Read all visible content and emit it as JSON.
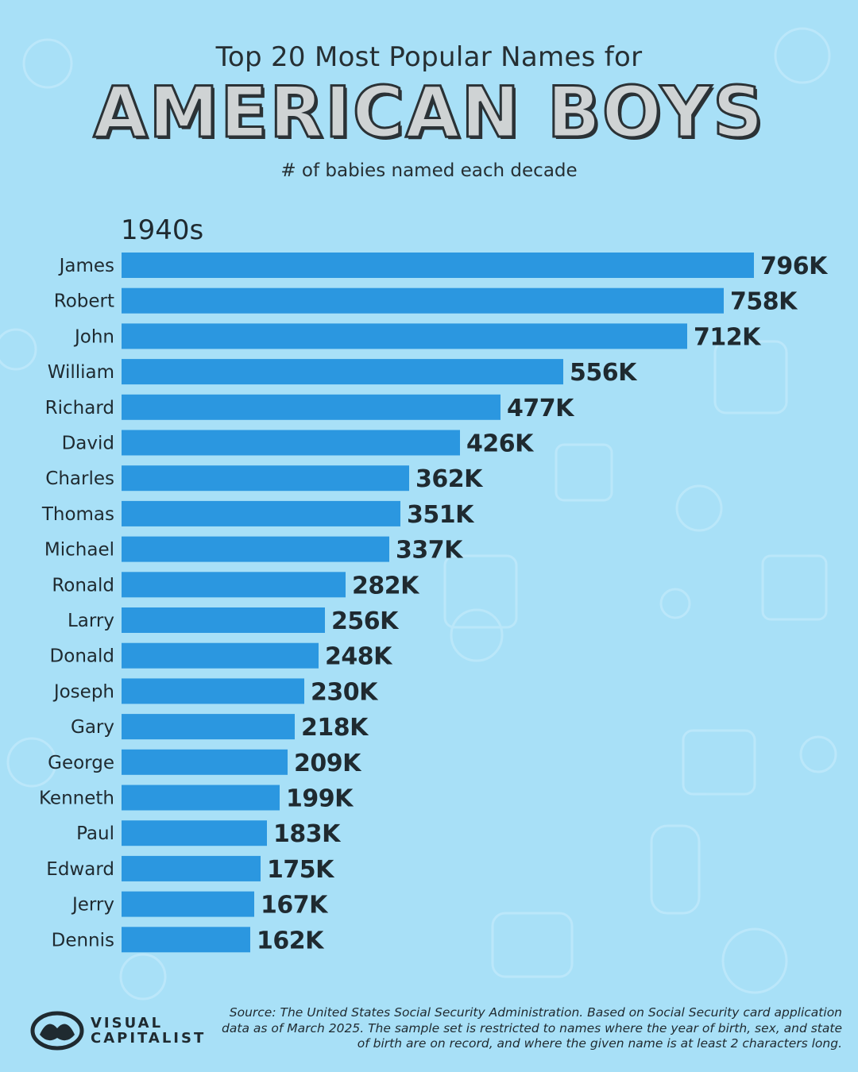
{
  "header": {
    "title_top": "Top 20 Most Popular Names for",
    "title_main": "AMERICAN BOYS",
    "subtitle": "# of babies named each decade"
  },
  "decade": "1940s",
  "chart_data": {
    "type": "bar",
    "orientation": "horizontal",
    "title": "Top 20 Most Popular Names for AMERICAN BOYS",
    "subtitle": "# of babies named each decade",
    "panel_label": "1940s",
    "categories": [
      "James",
      "Robert",
      "John",
      "William",
      "Richard",
      "David",
      "Charles",
      "Thomas",
      "Michael",
      "Ronald",
      "Larry",
      "Donald",
      "Joseph",
      "Gary",
      "George",
      "Kenneth",
      "Paul",
      "Edward",
      "Jerry",
      "Dennis"
    ],
    "values": [
      796000,
      758000,
      712000,
      556000,
      477000,
      426000,
      362000,
      351000,
      337000,
      282000,
      256000,
      248000,
      230000,
      218000,
      209000,
      199000,
      183000,
      175000,
      167000,
      162000
    ],
    "value_labels": [
      "796K",
      "758K",
      "712K",
      "556K",
      "477K",
      "426K",
      "362K",
      "351K",
      "337K",
      "282K",
      "256K",
      "248K",
      "230K",
      "218K",
      "209K",
      "199K",
      "183K",
      "175K",
      "167K",
      "162K"
    ],
    "xlim": [
      0,
      796000
    ],
    "grid": false,
    "legend": "none",
    "bar_color": "#2b97e0"
  },
  "colors": {
    "background": "#a8e0f7",
    "bar": "#2b97e0",
    "text": "#1f2a30"
  },
  "footer": {
    "logo_line1": "VISUAL",
    "logo_line2": "CAPITALIST",
    "logo_icon": "visual-capitalist-logo-icon",
    "source": "Source: The United States Social Security Administration. Based on Social Security card application data as of March 2025. The sample set is restricted to names where the year of birth, sex, and state of birth are on record, and where the given name is at least 2 characters long."
  }
}
